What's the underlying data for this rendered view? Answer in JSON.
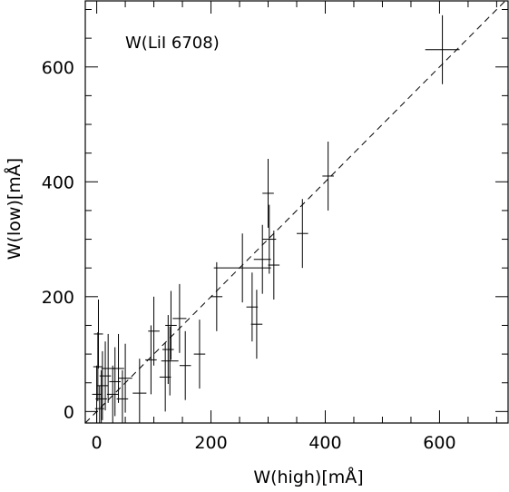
{
  "chart_data": {
    "type": "scatter",
    "annotation": "W(LiI 6708)",
    "xlabel": "W(high)[mÅ]",
    "ylabel": "W(low)[mÅ]",
    "xlim": [
      -20,
      720
    ],
    "ylim": [
      -20,
      715
    ],
    "xticks": [
      0,
      200,
      400,
      600
    ],
    "yticks": [
      0,
      200,
      400,
      600
    ],
    "xtick_labels": [
      "0",
      "200",
      "400",
      "600"
    ],
    "ytick_labels": [
      "0",
      "200",
      "400",
      "600"
    ],
    "reference_line": {
      "slope": 1,
      "intercept": 0,
      "style": "dashed"
    },
    "grid": false,
    "points": [
      {
        "x": 605,
        "y": 630,
        "xerr": 30,
        "yerr": 60
      },
      {
        "x": 405,
        "y": 410,
        "xerr": 10,
        "yerr": 60
      },
      {
        "x": 360,
        "y": 310,
        "xerr": 10,
        "yerr": 60
      },
      {
        "x": 300,
        "y": 380,
        "xerr": 10,
        "yerr": 60
      },
      {
        "x": 302,
        "y": 300,
        "xerr": 12,
        "yerr": 60
      },
      {
        "x": 290,
        "y": 265,
        "xerr": 15,
        "yerr": 60
      },
      {
        "x": 310,
        "y": 255,
        "xerr": 10,
        "yerr": 60
      },
      {
        "x": 255,
        "y": 250,
        "xerr": 50,
        "yerr": 60
      },
      {
        "x": 280,
        "y": 152,
        "xerr": 10,
        "yerr": 60
      },
      {
        "x": 272,
        "y": 182,
        "xerr": 10,
        "yerr": 60
      },
      {
        "x": 210,
        "y": 200,
        "xerr": 10,
        "yerr": 60
      },
      {
        "x": 180,
        "y": 100,
        "xerr": 10,
        "yerr": 60
      },
      {
        "x": 155,
        "y": 80,
        "xerr": 10,
        "yerr": 60
      },
      {
        "x": 145,
        "y": 162,
        "xerr": 12,
        "yerr": 60
      },
      {
        "x": 130,
        "y": 150,
        "xerr": 10,
        "yerr": 60
      },
      {
        "x": 125,
        "y": 108,
        "xerr": 10,
        "yerr": 60
      },
      {
        "x": 128,
        "y": 88,
        "xerr": 15,
        "yerr": 60
      },
      {
        "x": 120,
        "y": 60,
        "xerr": 10,
        "yerr": 60
      },
      {
        "x": 100,
        "y": 140,
        "xerr": 10,
        "yerr": 60
      },
      {
        "x": 95,
        "y": 90,
        "xerr": 10,
        "yerr": 60
      },
      {
        "x": 75,
        "y": 32,
        "xerr": 12,
        "yerr": 60
      },
      {
        "x": 50,
        "y": 58,
        "xerr": 12,
        "yerr": 60
      },
      {
        "x": 45,
        "y": 22,
        "xerr": 10,
        "yerr": 50
      },
      {
        "x": 38,
        "y": 75,
        "xerr": 10,
        "yerr": 60
      },
      {
        "x": 32,
        "y": 52,
        "xerr": 10,
        "yerr": 60
      },
      {
        "x": 28,
        "y": 30,
        "xerr": 10,
        "yerr": 50
      },
      {
        "x": 20,
        "y": 75,
        "xerr": 12,
        "yerr": 60
      },
      {
        "x": 15,
        "y": 62,
        "xerr": 10,
        "yerr": 60
      },
      {
        "x": 10,
        "y": 45,
        "xerr": 10,
        "yerr": 60
      },
      {
        "x": 8,
        "y": 22,
        "xerr": 10,
        "yerr": 50
      },
      {
        "x": 5,
        "y": 5,
        "xerr": 8,
        "yerr": 40
      },
      {
        "x": 3,
        "y": 135,
        "xerr": 8,
        "yerr": 60
      },
      {
        "x": 2,
        "y": 78,
        "xerr": 8,
        "yerr": 60
      },
      {
        "x": 0,
        "y": 30,
        "xerr": 8,
        "yerr": 50
      }
    ]
  }
}
